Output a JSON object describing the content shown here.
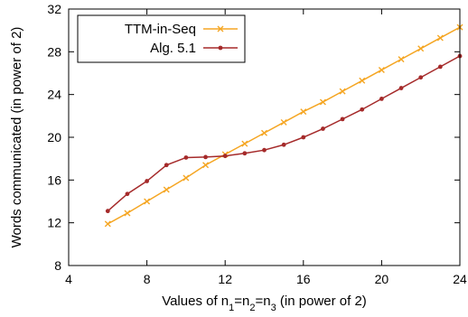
{
  "chart_data": {
    "type": "line",
    "title": "",
    "xlabel_parts": [
      "Values of n",
      "1",
      "=n",
      "2",
      "=n",
      "3",
      " (in power of 2)"
    ],
    "ylabel": "Words communicated (in power of 2)",
    "xlim": [
      4,
      24
    ],
    "ylim": [
      8,
      32
    ],
    "xticks": [
      4,
      8,
      12,
      16,
      20,
      24
    ],
    "yticks": [
      8,
      12,
      16,
      20,
      24,
      28,
      32
    ],
    "grid": false,
    "legend_position": "top-left",
    "series": [
      {
        "name": "TTM-in-Seq",
        "color": "#f5a623",
        "marker": "x",
        "x": [
          6,
          7,
          8,
          9,
          10,
          11,
          12,
          13,
          14,
          15,
          16,
          17,
          18,
          19,
          20,
          21,
          22,
          23,
          24
        ],
        "y": [
          11.9,
          12.9,
          14.0,
          15.1,
          16.2,
          17.4,
          18.4,
          19.4,
          20.4,
          21.4,
          22.4,
          23.3,
          24.3,
          25.3,
          26.3,
          27.3,
          28.3,
          29.3,
          30.3
        ]
      },
      {
        "name": "Alg. 5.1",
        "color": "#a52a2a",
        "marker": "circle",
        "x": [
          6,
          7,
          8,
          9,
          10,
          11,
          12,
          13,
          14,
          15,
          16,
          17,
          18,
          19,
          20,
          21,
          22,
          23,
          24
        ],
        "y": [
          13.1,
          14.7,
          15.9,
          17.4,
          18.1,
          18.15,
          18.25,
          18.5,
          18.8,
          19.3,
          20.0,
          20.8,
          21.7,
          22.6,
          23.6,
          24.6,
          25.6,
          26.6,
          27.6
        ]
      }
    ]
  }
}
